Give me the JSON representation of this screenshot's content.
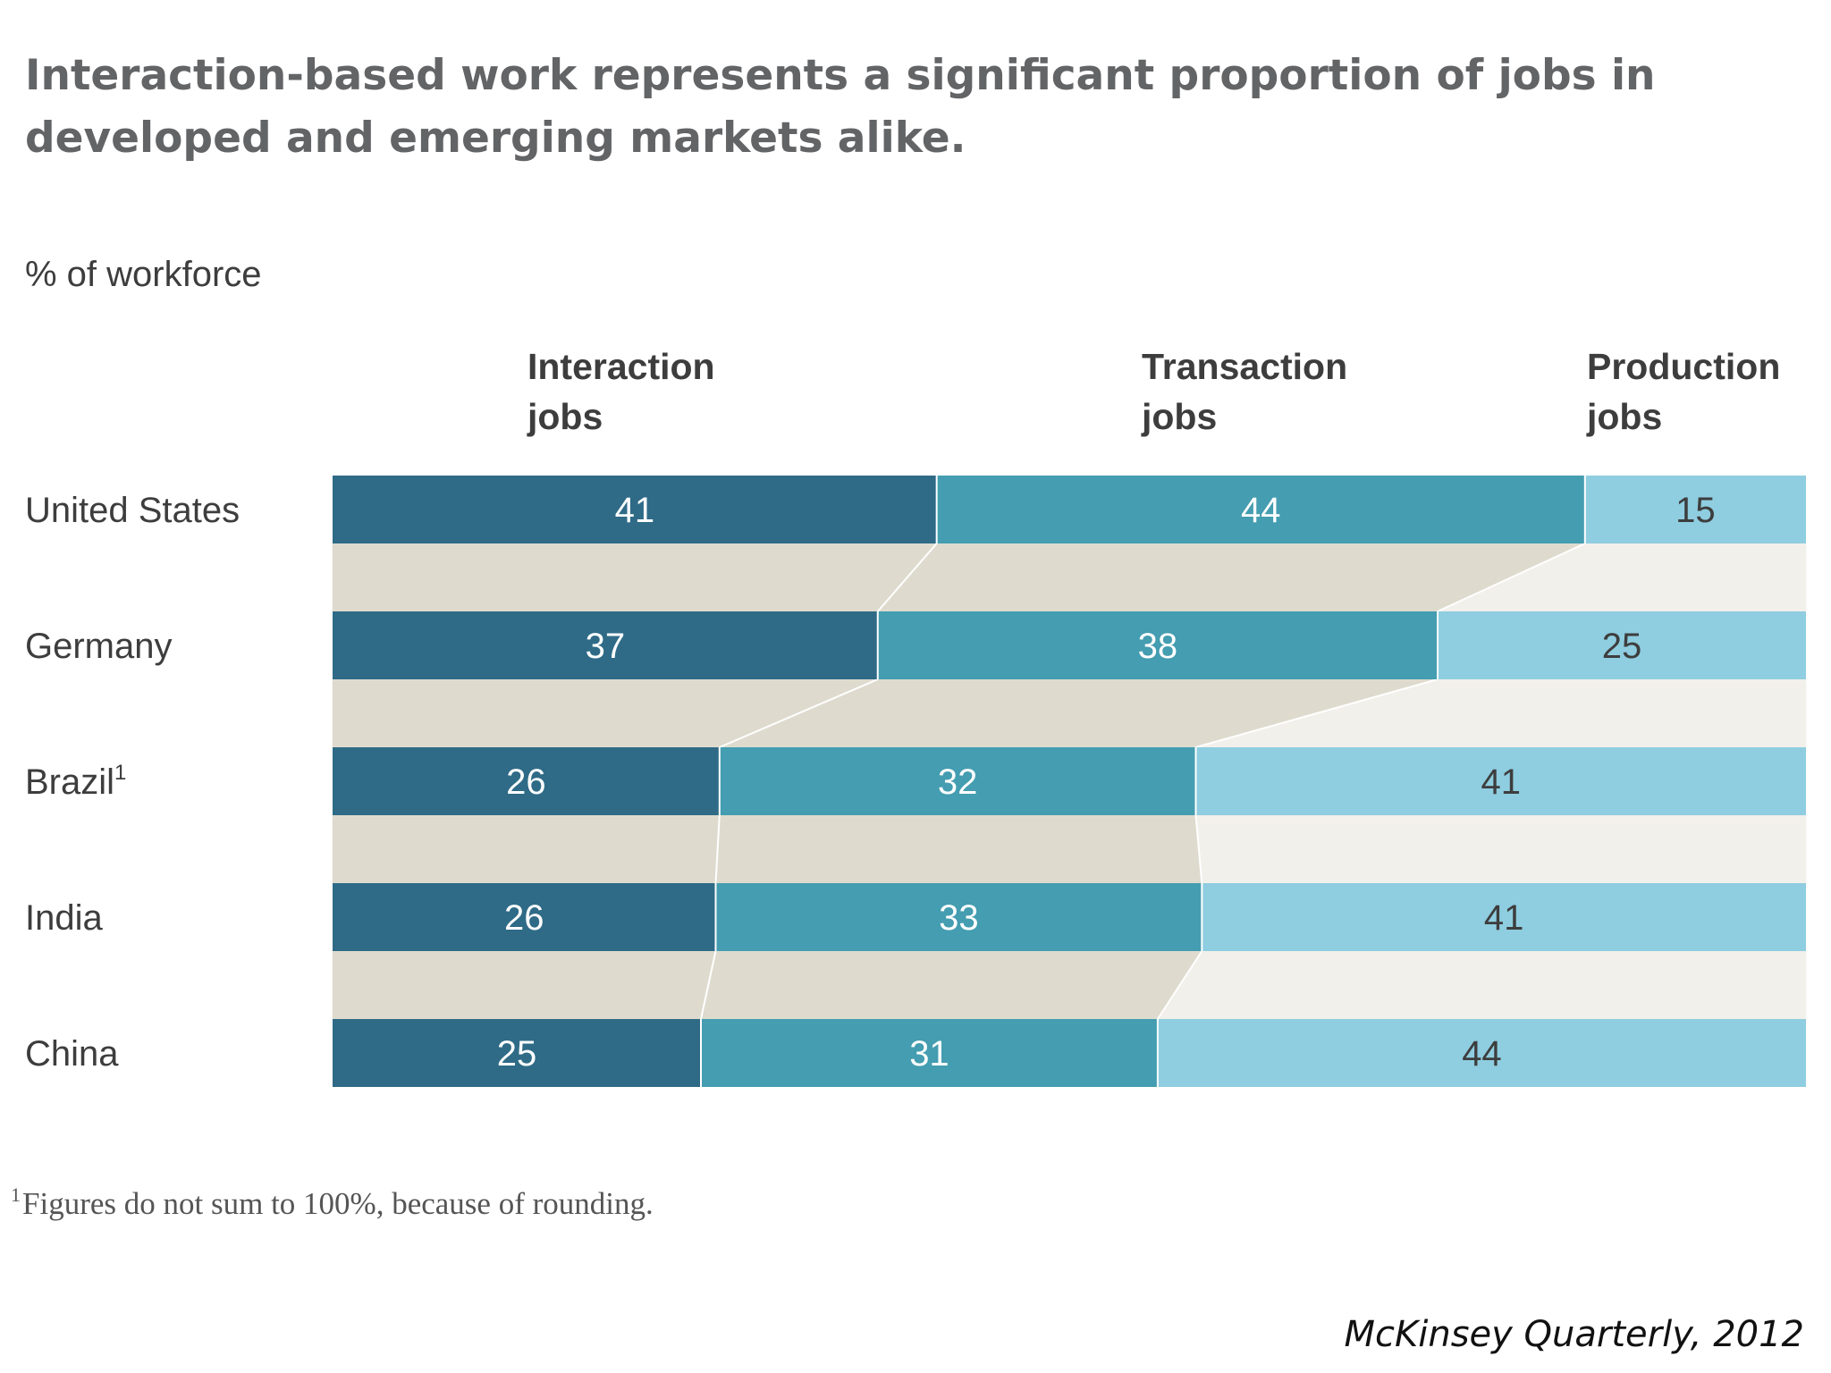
{
  "chart_data": {
    "type": "bar",
    "orientation": "horizontal",
    "stacked": true,
    "title": "Interaction-based work represents a significant proportion of jobs in developed and emerging markets alike.",
    "ylabel": "% of workforce",
    "categories": [
      "United States",
      "Germany",
      "Brazil",
      "India",
      "China"
    ],
    "category_footnote_marks": [
      "",
      "",
      "1",
      "",
      ""
    ],
    "series": [
      {
        "name": "Interaction jobs",
        "name_lines": [
          "Interaction",
          "jobs"
        ],
        "values": [
          41,
          37,
          26,
          26,
          25
        ],
        "color": "#2f6b87",
        "label_color": "#ffffff"
      },
      {
        "name": "Transaction jobs",
        "name_lines": [
          "Transaction",
          "jobs"
        ],
        "values": [
          44,
          38,
          32,
          33,
          31
        ],
        "color": "#449db0",
        "label_color": "#ffffff"
      },
      {
        "name": "Production jobs",
        "name_lines": [
          "Production",
          "jobs"
        ],
        "values": [
          15,
          25,
          41,
          41,
          44
        ],
        "color": "#8fcde0",
        "label_color": "#3d3d3d"
      }
    ],
    "connector_colors": [
      "#dedbce",
      "#dedbce",
      "#f2f0ea"
    ],
    "legend": "top",
    "grid": false
  },
  "footnote": {
    "mark": "1",
    "text": "Figures do not sum to 100%, because of rounding."
  },
  "source": "McKinsey Quarterly, 2012"
}
